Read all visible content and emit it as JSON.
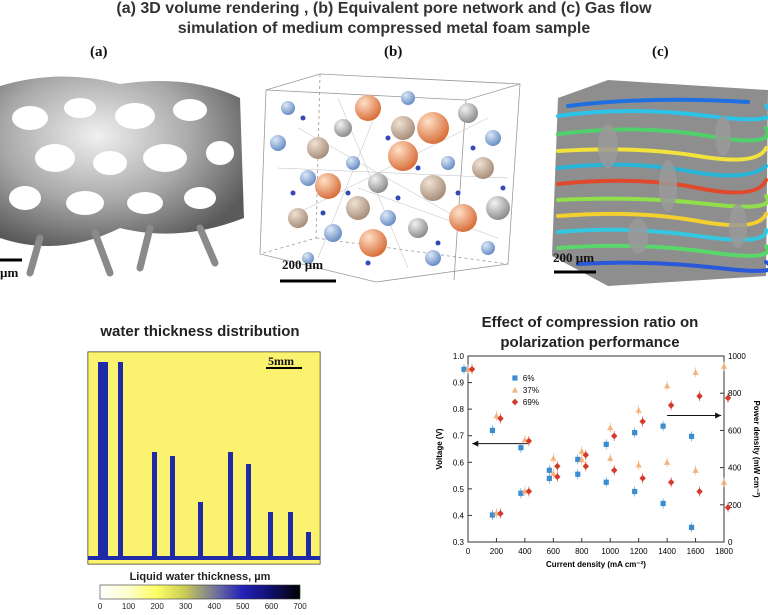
{
  "figure": {
    "title_line1": "(a) 3D volume rendering , (b) Equivalent pore network and (c) Gas flow",
    "title_line2": "simulation of medium compressed metal foam sample",
    "panel_a": {
      "label": "(a)",
      "scale": "µm"
    },
    "panel_b": {
      "label": "(b)",
      "scale": "200 µm"
    },
    "panel_c": {
      "label": "(c)",
      "scale": "200 µm"
    },
    "water": {
      "title": "water thickness distribution",
      "scale": "5mm",
      "colorbar_label": "Liquid water thickness, µm",
      "colorbar_ticks": [
        "0",
        "100",
        "200",
        "300",
        "400",
        "500",
        "600",
        "700"
      ],
      "colorbar_colors": [
        "#ffffff",
        "#ffffcc",
        "#ffff66",
        "#cccc55",
        "#777799",
        "#2222bb",
        "#10106f",
        "#000000"
      ]
    }
  },
  "chart_data": {
    "type": "scatter",
    "title": "Effect of compression ratio on polarization performance",
    "xlabel": "Current density (mA cm⁻²)",
    "ylabel": "Voltage (V)",
    "y2label": "Power density (mW cm⁻²)",
    "xlim": [
      0,
      1800
    ],
    "ylim": [
      0.3,
      1.0
    ],
    "y2lim": [
      0,
      1000
    ],
    "x_ticks": [
      0,
      200,
      400,
      600,
      800,
      1000,
      1200,
      1400,
      1600,
      1800
    ],
    "y_ticks": [
      0.3,
      0.4,
      0.5,
      0.6,
      0.7,
      0.8,
      0.9,
      1.0
    ],
    "y2_ticks": [
      0,
      200,
      400,
      600,
      800,
      1000
    ],
    "legend_position": "top-left",
    "series": [
      {
        "name": "6%",
        "color": "#3b8dd0",
        "marker": "square",
        "x": [
          0,
          200,
          400,
          600,
          800,
          1000,
          1200,
          1400,
          1600
        ],
        "voltage": [
          0.95,
          0.72,
          0.655,
          0.57,
          0.555,
          0.525,
          0.49,
          0.445,
          0.355
        ],
        "power": [
          0,
          145,
          262,
          342,
          444,
          525,
          588,
          623,
          568
        ]
      },
      {
        "name": "37%",
        "color": "#f2ab70",
        "marker": "triangle",
        "x": [
          0,
          200,
          400,
          600,
          800,
          1000,
          1200,
          1400,
          1600,
          1800
        ],
        "voltage": [
          0.95,
          0.775,
          0.685,
          0.615,
          0.61,
          0.615,
          0.59,
          0.6,
          0.57,
          0.525
        ],
        "power": [
          0,
          155,
          274,
          369,
          488,
          615,
          708,
          840,
          912,
          945
        ]
      },
      {
        "name": "69%",
        "color": "#d43a2c",
        "marker": "diamond",
        "x": [
          0,
          200,
          400,
          600,
          800,
          1000,
          1200,
          1400,
          1600,
          1800
        ],
        "voltage": [
          0.95,
          0.765,
          0.68,
          0.585,
          0.585,
          0.57,
          0.54,
          0.525,
          0.49,
          0.43
        ],
        "power": [
          0,
          153,
          272,
          351,
          468,
          570,
          648,
          735,
          784,
          774
        ]
      }
    ]
  }
}
